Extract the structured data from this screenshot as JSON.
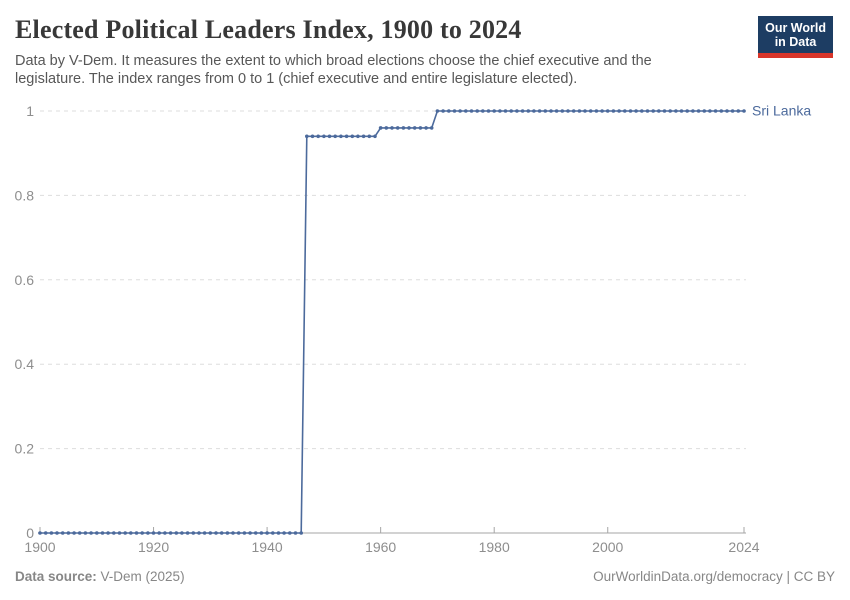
{
  "header": {
    "title": "Elected Political Leaders Index, 1900 to 2024",
    "subtitle": "Data by V-Dem. It measures the extent to which broad elections choose the chief executive and the legislature. The index ranges from 0 to 1 (chief executive and entire legislature elected)."
  },
  "logo": {
    "line1": "Our World",
    "line2": "in Data",
    "background_color": "#1d3d63",
    "accent_color": "#d8352a"
  },
  "footer": {
    "source_label": "Data source:",
    "source_value": " V-Dem (2025)",
    "credit": "OurWorldinData.org/democracy | CC BY"
  },
  "chart_data": {
    "type": "line",
    "title": "Elected Political Leaders Index, 1900 to 2024",
    "entity": "Sri Lanka",
    "end_label": "Sri Lanka",
    "x_start": 1900,
    "x_end": 2024,
    "ylim": [
      0,
      1
    ],
    "y_ticks": [
      0,
      0.2,
      0.4,
      0.6,
      0.8,
      1
    ],
    "x_ticks": [
      1900,
      1920,
      1940,
      1960,
      1980,
      2000,
      2024
    ],
    "grid": "horizontal-dashed",
    "legend_position": "right-end-label",
    "line_color": "#4C6A9C",
    "grid_color": "#dddddd",
    "axis_color": "#a5a5a5",
    "tick_label_color": "#8e8e8e",
    "marker": "dot-every-year",
    "series": [
      {
        "name": "Sri Lanka",
        "color": "#4C6A9C",
        "values": [
          0,
          0,
          0,
          0,
          0,
          0,
          0,
          0,
          0,
          0,
          0,
          0,
          0,
          0,
          0,
          0,
          0,
          0,
          0,
          0,
          0,
          0,
          0,
          0,
          0,
          0,
          0,
          0,
          0,
          0,
          0,
          0,
          0,
          0,
          0,
          0,
          0,
          0,
          0,
          0,
          0,
          0,
          0,
          0,
          0,
          0,
          0,
          0.94,
          0.94,
          0.94,
          0.94,
          0.94,
          0.94,
          0.94,
          0.94,
          0.94,
          0.94,
          0.94,
          0.94,
          0.94,
          0.96,
          0.96,
          0.96,
          0.96,
          0.96,
          0.96,
          0.96,
          0.96,
          0.96,
          0.96,
          1,
          1,
          1,
          1,
          1,
          1,
          1,
          1,
          1,
          1,
          1,
          1,
          1,
          1,
          1,
          1,
          1,
          1,
          1,
          1,
          1,
          1,
          1,
          1,
          1,
          1,
          1,
          1,
          1,
          1,
          1,
          1,
          1,
          1,
          1,
          1,
          1,
          1,
          1,
          1,
          1,
          1,
          1,
          1,
          1,
          1,
          1,
          1,
          1,
          1,
          1,
          1,
          1,
          1,
          1
        ]
      }
    ]
  }
}
